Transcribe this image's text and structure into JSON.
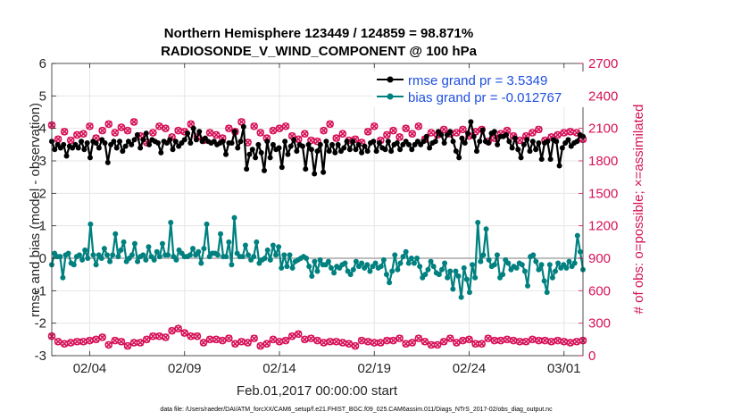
{
  "chart_data": {
    "type": "line",
    "title": "Northern Hemisphere 123449 / 124859 = 98.871%",
    "subtitle": "RADIOSONDE_V_WIND_COMPONENT @ 100 hPa",
    "xlabel": "Feb.01,2017 00:00:00 start",
    "ylabel": "rmse and bias (model - observation)",
    "y2label": "# of obs: o=possible; ×=assimilated",
    "footer": "data file: /Users/raeder/DAI/ATM_forcXX/CAM6_setup/f.e21.FHIST_BGC.f09_025.CAM6assim.011/Diags_NTrS_2017-02/obs_diag_output.nc",
    "xlim": [
      1,
      29
    ],
    "ylim": [
      -3,
      6
    ],
    "y2lim": [
      0,
      2700
    ],
    "xticks": [
      3,
      8,
      13,
      18,
      23,
      28
    ],
    "xtick_labels": [
      "02/04",
      "02/09",
      "02/14",
      "02/19",
      "02/24",
      "03/01"
    ],
    "yticks": [
      -3,
      -2,
      -1,
      0,
      1,
      2,
      3,
      4,
      5,
      6
    ],
    "y2ticks": [
      0,
      300,
      600,
      900,
      1200,
      1500,
      1800,
      2100,
      2400,
      2700
    ],
    "grid": true,
    "legend_position": "top-right",
    "colors": {
      "rmse": "#000000",
      "bias": "#00807f",
      "obs": "#d61158",
      "zero": "#bdbdbd",
      "grid": "#e6e6e6",
      "legend_text": "#1f4fe0"
    },
    "series": [
      {
        "name": "rmse grand pr = 3.5349",
        "axis": "left",
        "marker": "dot",
        "values": [
          3.6,
          3.35,
          3.5,
          3.4,
          3.5,
          3.15,
          3.45,
          3.4,
          3.5,
          3.4,
          3.6,
          3.35,
          3.55,
          3.1,
          3.6,
          3.55,
          3.4,
          3.65,
          3.55,
          2.95,
          3.5,
          3.6,
          3.4,
          3.6,
          3.3,
          3.45,
          3.6,
          3.5,
          3.65,
          3.8,
          3.4,
          3.65,
          3.85,
          3.5,
          3.65,
          3.6,
          3.55,
          3.25,
          3.6,
          3.55,
          3.65,
          3.35,
          3.6,
          3.45,
          3.55,
          3.65,
          3.85,
          3.55,
          4.0,
          3.65,
          3.9,
          3.6,
          3.7,
          3.6,
          3.55,
          3.6,
          3.5,
          3.55,
          3.6,
          3.2,
          3.55,
          3.55,
          3.9,
          3.4,
          3.6,
          4.05,
          2.75,
          3.2,
          3.35,
          3.1,
          3.5,
          3.25,
          2.7,
          3.6,
          3.1,
          3.5,
          3.35,
          3.4,
          2.8,
          3.6,
          3.2,
          3.45,
          3.65,
          3.3,
          3.5,
          3.45,
          2.75,
          3.5,
          3.35,
          2.6,
          3.3,
          3.5,
          2.65,
          3.6,
          3.3,
          3.5,
          3.25,
          3.5,
          3.3,
          3.4,
          3.6,
          3.35,
          3.6,
          3.35,
          3.5,
          3.25,
          3.45,
          3.3,
          3.55,
          3.6,
          3.3,
          3.55,
          3.4,
          3.35,
          3.6,
          3.3,
          3.5,
          3.55,
          3.35,
          3.5,
          3.6,
          3.5,
          3.35,
          3.5,
          3.6,
          3.5,
          3.6,
          3.75,
          3.4,
          3.55,
          3.6,
          3.9,
          3.8,
          3.55,
          3.8,
          3.9,
          3.6,
          3.3,
          3.1,
          3.7,
          3.55,
          3.85,
          4.2,
          3.75,
          3.3,
          3.6,
          3.95,
          3.6,
          3.55,
          3.85,
          3.9,
          3.5,
          3.75,
          3.75,
          3.8,
          3.6,
          3.4,
          3.7,
          3.35,
          3.1,
          3.5,
          3.65,
          3.3,
          3.6,
          3.35,
          3.55,
          3.05,
          3.55,
          3.6,
          3.05,
          3.65,
          3.6,
          2.85,
          3.4,
          3.55,
          3.65,
          3.45,
          3.55,
          3.6,
          3.8,
          3.75
        ]
      },
      {
        "name": "bias grand pr = -0.012767",
        "axis": "left",
        "marker": "dot",
        "values": [
          -0.2,
          0.15,
          0.05,
          0.05,
          -0.6,
          0.1,
          0.15,
          -0.15,
          -0.2,
          0.05,
          0.1,
          -0.05,
          0.25,
          0.0,
          1.05,
          0.1,
          -0.2,
          0.1,
          0.0,
          0.3,
          0.1,
          -0.1,
          0.1,
          0.75,
          0.05,
          0.25,
          0.5,
          -0.1,
          0.0,
          0.1,
          0.45,
          -0.1,
          0.05,
          0.1,
          -0.05,
          0.35,
          0.05,
          -0.05,
          0.2,
          0.05,
          0.45,
          0.1,
          0.1,
          1.1,
          0.05,
          -0.05,
          0.25,
          0.15,
          0.05,
          0.05,
          0.1,
          0.3,
          0.1,
          0.2,
          -0.15,
          0.3,
          1.05,
          0.05,
          0.15,
          0.15,
          0.1,
          0.75,
          0.05,
          0.05,
          0.5,
          -0.2,
          1.25,
          0.15,
          0.05,
          0.05,
          0.4,
          0.1,
          -0.05,
          0.05,
          0.5,
          -0.15,
          -0.05,
          0.0,
          0.25,
          -0.05,
          0.4,
          0.1,
          0.35,
          -0.3,
          0.1,
          -0.25,
          0.1,
          -0.3,
          -0.1,
          -0.05,
          0.0,
          0.05,
          0.0,
          -0.25,
          -0.55,
          -0.1,
          -0.4,
          -0.05,
          -0.2,
          -0.2,
          -0.1,
          -0.3,
          -0.45,
          -0.25,
          -0.3,
          -0.2,
          -0.15,
          -0.4,
          -0.5,
          -0.35,
          -0.1,
          -0.25,
          -0.15,
          -0.3,
          -0.2,
          -0.4,
          -0.25,
          -0.15,
          -0.3,
          -0.25,
          -0.05,
          -0.5,
          -0.75,
          -0.4,
          0.1,
          -0.35,
          -0.15,
          0.05,
          0.2,
          -0.15,
          0.0,
          -0.15,
          0.0,
          -0.25,
          -0.6,
          -0.5,
          -0.35,
          -0.1,
          -0.25,
          -0.45,
          -0.5,
          -0.35,
          -0.15,
          -0.6,
          -0.4,
          -0.95,
          -0.4,
          -0.55,
          -1.2,
          -0.3,
          -0.65,
          -1.05,
          -0.2,
          -0.6,
          1.1,
          -0.1,
          0.1,
          0.9,
          -0.05,
          -0.25,
          -0.2,
          0.1,
          -0.6,
          -0.5,
          -0.05,
          -0.15,
          -0.35,
          -0.25,
          -0.3,
          -0.15,
          -0.2,
          -0.4,
          -0.85,
          0.05,
          0.1,
          -0.1,
          -0.35,
          -0.2,
          -0.7,
          -1.05,
          -0.2,
          -0.6,
          -0.4,
          -0.15,
          -0.3,
          -0.2,
          -0.3,
          -0.1,
          -0.25,
          -0.15,
          0.7,
          0.2,
          -0.35
        ]
      },
      {
        "name": "# of obs possible",
        "axis": "right",
        "marker": "circle",
        "values": [
          2130,
          2000,
          2070,
          1990,
          2040,
          2050,
          2120,
          2010,
          2080,
          2140,
          2060,
          2110,
          2080,
          2160,
          2030,
          1970,
          2060,
          2120,
          2100,
          2020,
          2080,
          2070,
          2140,
          2020,
          1990,
          2060,
          2040,
          2010,
          2100,
          2070,
          2160,
          1970,
          2120,
          2060,
          2010,
          2080,
          2100,
          2120,
          2030,
          2000,
          2050,
          1990,
          1980,
          2080,
          2140,
          2010,
          2050,
          1990,
          2000,
          1970,
          2070,
          2120,
          1990,
          2040,
          2080,
          2020,
          2100,
          2050,
          2120,
          2000,
          2060,
          2040,
          2090,
          2050,
          2060,
          2090,
          2030,
          2070,
          2090,
          1980,
          2010,
          2050,
          2080,
          2030,
          1990,
          2030,
          2060,
          2090,
          1990,
          2020,
          2040,
          2060,
          2070,
          2060,
          2000
        ]
      },
      {
        "name": "# of obs assimilated",
        "axis": "right",
        "marker": "cross",
        "values": [
          180,
          130,
          110,
          120,
          130,
          130,
          140,
          150,
          170,
          100,
          140,
          130,
          90,
          120,
          120,
          150,
          180,
          180,
          170,
          230,
          250,
          210,
          180,
          180,
          120,
          150,
          150,
          140,
          160,
          110,
          130,
          120,
          160,
          90,
          110,
          150,
          130,
          140,
          180,
          200,
          150,
          160,
          140,
          120,
          130,
          130,
          120,
          110,
          90,
          140,
          130,
          120,
          120,
          140,
          140,
          160,
          110,
          120,
          160,
          130,
          100,
          100,
          130,
          160,
          120,
          140,
          150,
          110,
          110,
          160,
          140,
          140,
          150,
          140,
          130,
          130,
          150,
          140,
          140,
          130,
          140,
          130,
          120,
          130,
          140
        ]
      }
    ]
  }
}
